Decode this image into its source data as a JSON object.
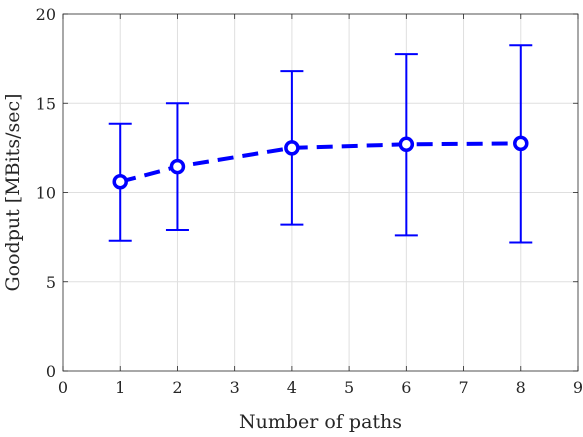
{
  "chart_data": {
    "type": "errorbar-line",
    "xlabel": "Number of paths",
    "ylabel": "Goodput [MBits/sec]",
    "xlim": [
      0,
      9
    ],
    "ylim": [
      0,
      20
    ],
    "xticks": [
      "0",
      "1",
      "2",
      "3",
      "4",
      "5",
      "6",
      "7",
      "8",
      "9"
    ],
    "yticks": [
      "0",
      "5",
      "10",
      "15",
      "20"
    ],
    "grid": true,
    "line_style": "dashed",
    "marker": "circle",
    "color": "#0000ff",
    "series": [
      {
        "points": [
          {
            "x": 1,
            "y": 10.6,
            "low": 7.3,
            "high": 13.85
          },
          {
            "x": 2,
            "y": 11.45,
            "low": 7.9,
            "high": 15.0
          },
          {
            "x": 4,
            "y": 12.5,
            "low": 8.2,
            "high": 16.8
          },
          {
            "x": 6,
            "y": 12.7,
            "low": 7.6,
            "high": 17.75
          },
          {
            "x": 8,
            "y": 12.75,
            "low": 7.2,
            "high": 18.25
          }
        ]
      }
    ]
  }
}
